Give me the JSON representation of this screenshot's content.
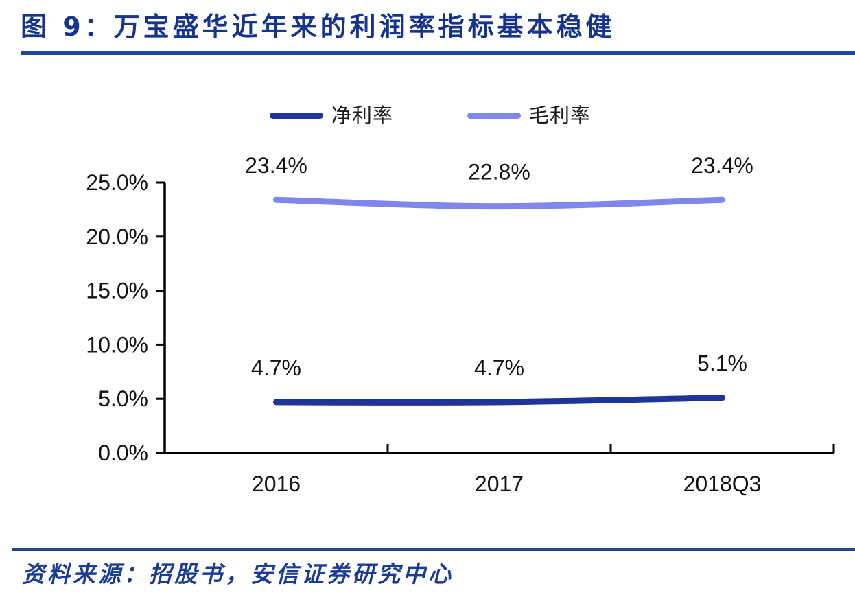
{
  "title": "图 9：万宝盛华近年来的利润率指标基本稳健",
  "source": "资料来源：招股书，安信证券研究中心",
  "colors": {
    "title_blue": "#16338E",
    "rule_blue": "#1F4690",
    "net_line": "#1F3499",
    "gross_line": "#8186EC",
    "axis_black": "#000000",
    "label_black": "#111111"
  },
  "legend": {
    "items": [
      {
        "label": "净利率",
        "color": "#1F3499"
      },
      {
        "label": "毛利率",
        "color": "#8186EC"
      }
    ]
  },
  "chart_data": {
    "type": "line",
    "title": "图 9：万宝盛华近年来的利润率指标基本稳健",
    "categories": [
      "2016",
      "2017",
      "2018Q3"
    ],
    "series": [
      {
        "name": "净利率",
        "color": "#1F3499",
        "values": [
          4.7,
          4.7,
          5.1
        ],
        "point_labels": [
          "4.7%",
          "4.7%",
          "5.1%"
        ]
      },
      {
        "name": "毛利率",
        "color": "#8186EC",
        "values": [
          23.4,
          22.8,
          23.4
        ],
        "point_labels": [
          "23.4%",
          "22.8%",
          "23.4%"
        ]
      }
    ],
    "xlabel": "",
    "ylabel": "",
    "ylim": [
      0,
      25
    ],
    "ytick_step": 5,
    "ytick_labels": [
      "0.0%",
      "5.0%",
      "10.0%",
      "15.0%",
      "20.0%",
      "25.0%"
    ],
    "grid": false,
    "smooth": true,
    "legend_position": "top-center"
  }
}
